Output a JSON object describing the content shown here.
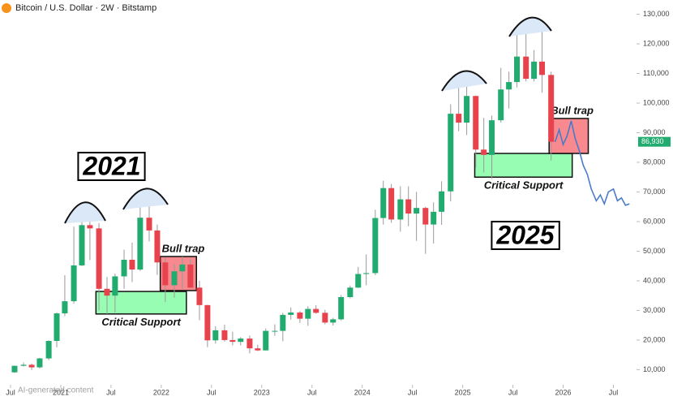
{
  "chart_data": {
    "type": "candlestick",
    "title": "Bitcoin / U.S. Dollar · 2W · Bitstamp",
    "up_color": "#22ab6e",
    "down_color": "#e8434c",
    "x": [
      2020.54,
      2020.63,
      2020.71,
      2020.79,
      2020.88,
      2020.96,
      2021.04,
      2021.13,
      2021.21,
      2021.29,
      2021.38,
      2021.46,
      2021.54,
      2021.63,
      2021.71,
      2021.79,
      2021.88,
      2021.96,
      2022.04,
      2022.13,
      2022.21,
      2022.29,
      2022.38,
      2022.46,
      2022.54,
      2022.63,
      2022.71,
      2022.79,
      2022.88,
      2022.96,
      2023.04,
      2023.13,
      2023.21,
      2023.29,
      2023.38,
      2023.46,
      2023.54,
      2023.63,
      2023.71,
      2023.79,
      2023.88,
      2023.96,
      2024.04,
      2024.13,
      2024.21,
      2024.29,
      2024.38,
      2024.46,
      2024.54,
      2024.63,
      2024.71,
      2024.79,
      2024.88,
      2024.96,
      2025.04,
      2025.13,
      2025.21,
      2025.29,
      2025.38,
      2025.46,
      2025.54,
      2025.63,
      2025.71,
      2025.79,
      2025.88
    ],
    "open": [
      9100,
      11300,
      11650,
      10780,
      13800,
      19700,
      29000,
      33100,
      45200,
      58800,
      57700,
      37300,
      35000,
      41500,
      47100,
      43800,
      61300,
      57000,
      46200,
      38500,
      43200,
      45500,
      37700,
      31800,
      19900,
      23300,
      20000,
      19400,
      20500,
      17200,
      16500,
      23100,
      23100,
      28500,
      29300,
      27200,
      30500,
      29200,
      25900,
      27000,
      34500,
      37700,
      42300,
      42600,
      61200,
      71300,
      60700,
      67500,
      62700,
      64600,
      59000,
      63300,
      70200,
      96400,
      93400,
      102400,
      84300,
      82500,
      94200,
      104600,
      107100,
      115700,
      108200,
      114000,
      109500
    ],
    "high": [
      11400,
      12400,
      12050,
      14000,
      19900,
      29300,
      41900,
      58300,
      61700,
      64800,
      59500,
      41300,
      42400,
      50500,
      52900,
      67000,
      69000,
      59000,
      47900,
      45800,
      48200,
      47400,
      40000,
      31900,
      24700,
      25200,
      22800,
      21000,
      21500,
      18400,
      23900,
      25300,
      29200,
      31000,
      29800,
      31400,
      31800,
      30200,
      27500,
      35200,
      38400,
      44700,
      48900,
      64000,
      73800,
      72700,
      71900,
      71900,
      70000,
      65000,
      66500,
      73600,
      99600,
      108300,
      109300,
      102500,
      95000,
      95800,
      111900,
      110600,
      123200,
      124400,
      117900,
      126200,
      110600
    ],
    "low": [
      8900,
      11100,
      9900,
      10400,
      13200,
      17600,
      28100,
      32300,
      45000,
      47000,
      30000,
      28800,
      29300,
      37300,
      39600,
      43300,
      53300,
      42000,
      32900,
      34300,
      37200,
      37600,
      26700,
      17600,
      18800,
      19500,
      18200,
      18200,
      15500,
      16300,
      16500,
      21400,
      19600,
      26900,
      25800,
      24800,
      28900,
      25300,
      24900,
      26600,
      34100,
      37600,
      38500,
      41900,
      59000,
      59600,
      56600,
      58400,
      53500,
      49100,
      52600,
      58900,
      66800,
      90500,
      89200,
      78200,
      76600,
      74400,
      93400,
      98200,
      105300,
      107300,
      107300,
      103500,
      80600
    ],
    "close": [
      11300,
      11650,
      10780,
      13800,
      19700,
      29000,
      33100,
      45200,
      58800,
      57700,
      37300,
      35000,
      41500,
      47100,
      43800,
      61300,
      57000,
      46200,
      38500,
      43200,
      45500,
      37700,
      31800,
      19900,
      23300,
      20000,
      19400,
      20500,
      17200,
      16500,
      23100,
      23100,
      28500,
      29300,
      27200,
      30500,
      29200,
      25900,
      27000,
      34500,
      37700,
      42300,
      42600,
      61200,
      71300,
      60700,
      67500,
      62700,
      64600,
      59000,
      63300,
      70200,
      96400,
      93400,
      102400,
      84300,
      82500,
      94200,
      104600,
      107100,
      115700,
      108200,
      114000,
      109500,
      86930
    ],
    "last_price": 86930,
    "last_price_label": "86,930",
    "projection": {
      "color": "#4a7ac9",
      "x": [
        2025.92,
        2025.96,
        2026.0,
        2026.04,
        2026.08,
        2026.12,
        2026.16,
        2026.2,
        2026.24,
        2026.28,
        2026.33,
        2026.37,
        2026.41,
        2026.45,
        2026.5,
        2026.54,
        2026.58,
        2026.62,
        2026.66
      ],
      "values": [
        86930,
        91000,
        86000,
        89000,
        94000,
        88000,
        84000,
        79000,
        76000,
        71000,
        67000,
        69000,
        66000,
        70000,
        71000,
        67000,
        68000,
        65500,
        66000
      ]
    },
    "zones": [
      {
        "label": "Critical Support",
        "color": "#7dfca0",
        "x": [
          2021.35,
          2022.25
        ],
        "y": [
          28800,
          36400
        ]
      },
      {
        "label": "Bull trap",
        "color": "#f56b73",
        "x": [
          2021.99,
          2022.35
        ],
        "y": [
          36700,
          48200
        ]
      },
      {
        "label": "Critical Support",
        "color": "#7dfca0",
        "x": [
          2025.12,
          2026.09
        ],
        "y": [
          75000,
          83000
        ]
      },
      {
        "label": "Bull trap",
        "color": "#f56b73",
        "x": [
          2025.86,
          2026.25
        ],
        "y": [
          83000,
          94800
        ]
      }
    ],
    "annotations": [
      "2021",
      "2025"
    ],
    "watermark": "AI-generated content",
    "xlim": [
      2020.395,
      2026.73
    ],
    "xticks": [
      {
        "value": 2020.5,
        "label": "Jul"
      },
      {
        "value": 2021,
        "label": "2021"
      },
      {
        "value": 2021.5,
        "label": "Jul"
      },
      {
        "value": 2022,
        "label": "2022"
      },
      {
        "value": 2022.5,
        "label": "Jul"
      },
      {
        "value": 2023,
        "label": "2023"
      },
      {
        "value": 2023.5,
        "label": "Jul"
      },
      {
        "value": 2024,
        "label": "2024"
      },
      {
        "value": 2024.5,
        "label": "Jul"
      },
      {
        "value": 2025,
        "label": "2025"
      },
      {
        "value": 2025.5,
        "label": "Jul"
      },
      {
        "value": 2026,
        "label": "2026"
      },
      {
        "value": 2026.5,
        "label": "Jul"
      }
    ],
    "ylim": [
      6000,
      134800
    ],
    "yticks": [
      {
        "value": 10000,
        "label": "10,000"
      },
      {
        "value": 20000,
        "label": "20,000"
      },
      {
        "value": 30000,
        "label": "30,000"
      },
      {
        "value": 40000,
        "label": "40,000"
      },
      {
        "value": 50000,
        "label": "50,000"
      },
      {
        "value": 60000,
        "label": "60,000"
      },
      {
        "value": 70000,
        "label": "70,000"
      },
      {
        "value": 80000,
        "label": "80,000"
      },
      {
        "value": 90000,
        "label": "90,000"
      },
      {
        "value": 100000,
        "label": "100,000"
      },
      {
        "value": 110000,
        "label": "110,000"
      },
      {
        "value": 120000,
        "label": "120,000"
      },
      {
        "value": 130000,
        "label": "130,000"
      }
    ]
  }
}
